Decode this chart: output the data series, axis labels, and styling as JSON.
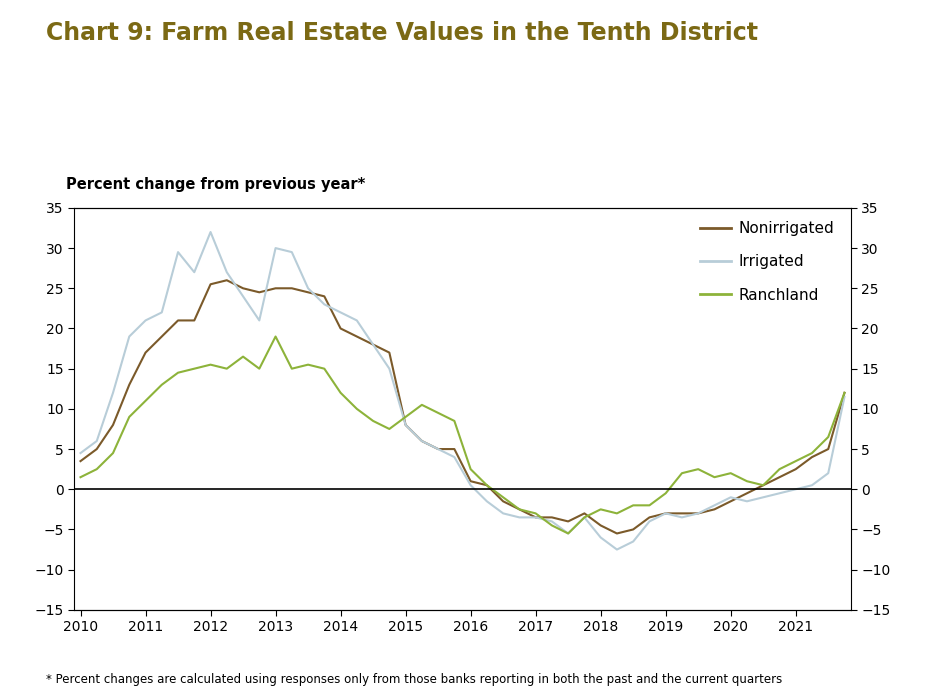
{
  "title": "Chart 9: Farm Real Estate Values in the Tenth District",
  "ylabel_left": "Percent change from previous year*",
  "footnote": "* Percent changes are calculated using responses only from those banks reporting in both the past and the current quarters",
  "ylim": [
    -15,
    35
  ],
  "yticks": [
    -15,
    -10,
    -5,
    0,
    5,
    10,
    15,
    20,
    25,
    30,
    35
  ],
  "title_color": "#7b6914",
  "background_color": "#ffffff",
  "series": {
    "nonirrigated": {
      "label": "Nonirrigated",
      "color": "#7b5a2a",
      "data": [
        3.5,
        5.0,
        8.0,
        13.0,
        17.0,
        19.0,
        21.0,
        21.0,
        25.5,
        26.0,
        25.0,
        24.5,
        25.0,
        25.0,
        24.5,
        24.0,
        20.0,
        19.0,
        18.0,
        17.0,
        8.0,
        6.0,
        5.0,
        5.0,
        1.0,
        0.5,
        -1.5,
        -2.5,
        -3.5,
        -3.5,
        -4.0,
        -3.0,
        -4.5,
        -5.5,
        -5.0,
        -3.5,
        -3.0,
        -3.0,
        -3.0,
        -2.5,
        -1.5,
        -0.5,
        0.5,
        1.5,
        2.5,
        4.0,
        5.0,
        12.0
      ]
    },
    "irrigated": {
      "label": "Irrigated",
      "color": "#b8cdd8",
      "data": [
        4.5,
        6.0,
        12.0,
        19.0,
        21.0,
        22.0,
        29.5,
        27.0,
        32.0,
        27.0,
        24.0,
        21.0,
        30.0,
        29.5,
        25.0,
        23.0,
        22.0,
        21.0,
        18.0,
        15.0,
        8.0,
        6.0,
        5.0,
        4.0,
        0.5,
        -1.5,
        -3.0,
        -3.5,
        -3.5,
        -4.0,
        -5.5,
        -3.5,
        -6.0,
        -7.5,
        -6.5,
        -4.0,
        -3.0,
        -3.5,
        -3.0,
        -2.0,
        -1.0,
        -1.5,
        -1.0,
        -0.5,
        0.0,
        0.5,
        2.0,
        11.5
      ]
    },
    "ranchland": {
      "label": "Ranchland",
      "color": "#8db33a",
      "data": [
        1.5,
        2.5,
        4.5,
        9.0,
        11.0,
        13.0,
        14.5,
        15.0,
        15.5,
        15.0,
        16.5,
        15.0,
        19.0,
        15.0,
        15.5,
        15.0,
        12.0,
        10.0,
        8.5,
        7.5,
        9.0,
        10.5,
        9.5,
        8.5,
        2.5,
        0.5,
        -1.0,
        -2.5,
        -3.0,
        -4.5,
        -5.5,
        -3.5,
        -2.5,
        -3.0,
        -2.0,
        -2.0,
        -0.5,
        2.0,
        2.5,
        1.5,
        2.0,
        1.0,
        0.5,
        2.5,
        3.5,
        4.5,
        6.5,
        12.0
      ]
    }
  }
}
